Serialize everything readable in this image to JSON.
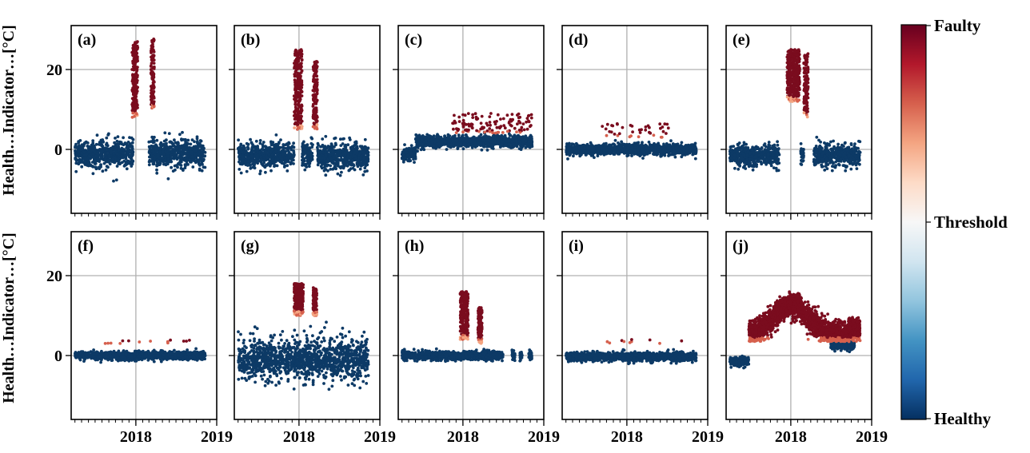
{
  "chart_data": {
    "type": "scatter",
    "ylabel_top": "Health…Indicator…[°C]",
    "ylabel_bottom": "Health…Indicator…[°C]",
    "xlim": [
      "2017-03-15",
      "2019-01-01"
    ],
    "ylim": [
      -16,
      31
    ],
    "x_ticks": [
      {
        "date": "2018-01-01",
        "label": "2018"
      },
      {
        "date": "2019-01-01",
        "label": "2019"
      }
    ],
    "y_ticks": [
      0,
      20
    ],
    "grid": true,
    "colorbar": {
      "colormap": "RdBu_r",
      "labels": {
        "top": "Faulty",
        "middle": "Threshold",
        "bottom": "Healthy"
      },
      "colors": [
        "#053061",
        "#2166ac",
        "#4393c3",
        "#92c5de",
        "#d1e5f0",
        "#f7f7f7",
        "#fddbc7",
        "#f4a582",
        "#d6604d",
        "#b2182b",
        "#67001f"
      ]
    },
    "colors": {
      "healthy": "#0d3a66",
      "faulty": "#7a0c1e",
      "warn": "#d6604d",
      "light": "#f4a582",
      "gray": "#b0b0b0"
    },
    "panels": [
      {
        "label": "(a)",
        "healthy": {
          "segments": [
            [
              "2017-04-01",
              "2017-12-20"
            ],
            [
              "2018-03-01",
              "2018-11-10"
            ]
          ],
          "mean": -1,
          "spread": 3,
          "ymin": -8.5,
          "ymax": 7
        },
        "faulty": [
          {
            "start": "2017-12-15",
            "end": "2018-01-10",
            "ymin": 8,
            "ymax": 27
          },
          {
            "start": "2018-03-10",
            "end": "2018-03-25",
            "ymin": 10,
            "ymax": 28
          }
        ]
      },
      {
        "label": "(b)",
        "healthy": {
          "segments": [
            [
              "2017-04-01",
              "2017-12-10"
            ],
            [
              "2018-01-15",
              "2018-03-05"
            ],
            [
              "2018-03-25",
              "2018-11-10"
            ]
          ],
          "mean": -1.5,
          "spread": 3,
          "ymin": -10,
          "ymax": 7
        },
        "faulty": [
          {
            "start": "2017-12-10",
            "end": "2018-01-15",
            "ymin": 5,
            "ymax": 25
          },
          {
            "start": "2018-03-05",
            "end": "2018-03-25",
            "ymin": 5,
            "ymax": 22
          }
        ]
      },
      {
        "label": "(c)",
        "healthy": {
          "segments": [
            [
              "2017-04-01",
              "2017-06-01"
            ]
          ],
          "mean": -1,
          "spread": 1.5,
          "ymin": -4,
          "ymax": 2
        },
        "healthy2": {
          "segments": [
            [
              "2017-06-01",
              "2018-11-10"
            ]
          ],
          "mean": 2,
          "spread": 1.3,
          "ymin": -1,
          "ymax": 5
        },
        "sparse_faulty": {
          "start": "2017-11-15",
          "end": "2018-11-10",
          "ymin": 4,
          "ymax": 9,
          "count": 120
        }
      },
      {
        "label": "(d)",
        "healthy": {
          "segments": [
            [
              "2017-04-01",
              "2018-11-10"
            ]
          ],
          "mean": 0,
          "spread": 1.2,
          "ymin": -3,
          "ymax": 3
        },
        "sparse_faulty": {
          "start": "2017-09-01",
          "end": "2018-07-10",
          "ymin": 3,
          "ymax": 6.5,
          "count": 40
        }
      },
      {
        "label": "(e)",
        "healthy": {
          "segments": [
            [
              "2017-04-01",
              "2017-11-10"
            ],
            [
              "2018-02-15",
              "2018-03-01"
            ],
            [
              "2018-04-15",
              "2018-11-10"
            ]
          ],
          "mean": -1.5,
          "spread": 2.5,
          "ymin": -7,
          "ymax": 5
        },
        "faulty": [
          {
            "start": "2017-12-15",
            "end": "2018-02-10",
            "ymin": 12,
            "ymax": 25
          },
          {
            "start": "2018-03-01",
            "end": "2018-03-20",
            "ymin": 8,
            "ymax": 24
          }
        ]
      },
      {
        "label": "(f)",
        "healthy": {
          "segments": [
            [
              "2017-04-01",
              "2018-11-10"
            ]
          ],
          "mean": 0,
          "spread": 0.9,
          "ymin": -3.5,
          "ymax": 3
        },
        "sparse_faulty": {
          "start": "2017-04-20",
          "end": "2018-11-05",
          "ymin": 3,
          "ymax": 4,
          "count": 14
        }
      },
      {
        "label": "(g)",
        "healthy": {
          "segments": [
            [
              "2017-04-01",
              "2018-11-10"
            ]
          ],
          "mean": -1,
          "spread": 4.5,
          "ymin": -15,
          "ymax": 10
        },
        "faulty": [
          {
            "start": "2017-12-10",
            "end": "2018-01-20",
            "ymin": 10,
            "ymax": 18
          },
          {
            "start": "2018-03-05",
            "end": "2018-03-22",
            "ymin": 10,
            "ymax": 17
          }
        ]
      },
      {
        "label": "(h)",
        "healthy": {
          "segments": [
            [
              "2017-04-01",
              "2018-07-01"
            ],
            [
              "2018-08-10",
              "2018-08-25"
            ],
            [
              "2018-09-15",
              "2018-09-25"
            ],
            [
              "2018-10-25",
              "2018-11-08"
            ]
          ],
          "mean": 0,
          "spread": 1,
          "ymin": -3,
          "ymax": 3
        },
        "faulty": [
          {
            "start": "2017-12-20",
            "end": "2018-01-25",
            "ymin": 4,
            "ymax": 16
          },
          {
            "start": "2018-03-10",
            "end": "2018-03-28",
            "ymin": 3,
            "ymax": 12
          }
        ]
      },
      {
        "label": "(i)",
        "healthy": {
          "segments": [
            [
              "2017-04-01",
              "2018-11-10"
            ]
          ],
          "mean": -0.3,
          "spread": 1,
          "ymin": -4,
          "ymax": 3
        },
        "sparse_faulty": {
          "start": "2017-04-20",
          "end": "2018-11-05",
          "ymin": 3,
          "ymax": 4,
          "count": 10
        }
      },
      {
        "label": "(j)",
        "healthy": {
          "segments": [
            [
              "2017-04-01",
              "2017-06-25"
            ]
          ],
          "mean": -1.5,
          "spread": 1,
          "ymin": -4,
          "ymax": 2
        },
        "healthy2": {
          "segments": [
            [
              "2018-07-01",
              "2018-10-15"
            ]
          ],
          "mean": 2.5,
          "spread": 1,
          "ymin": 0,
          "ymax": 5
        },
        "faulty": [
          {
            "start": "2017-06-25",
            "end": "2018-11-10",
            "ymin": 3.5,
            "ymax": 16,
            "shape": "hump"
          }
        ]
      }
    ]
  }
}
